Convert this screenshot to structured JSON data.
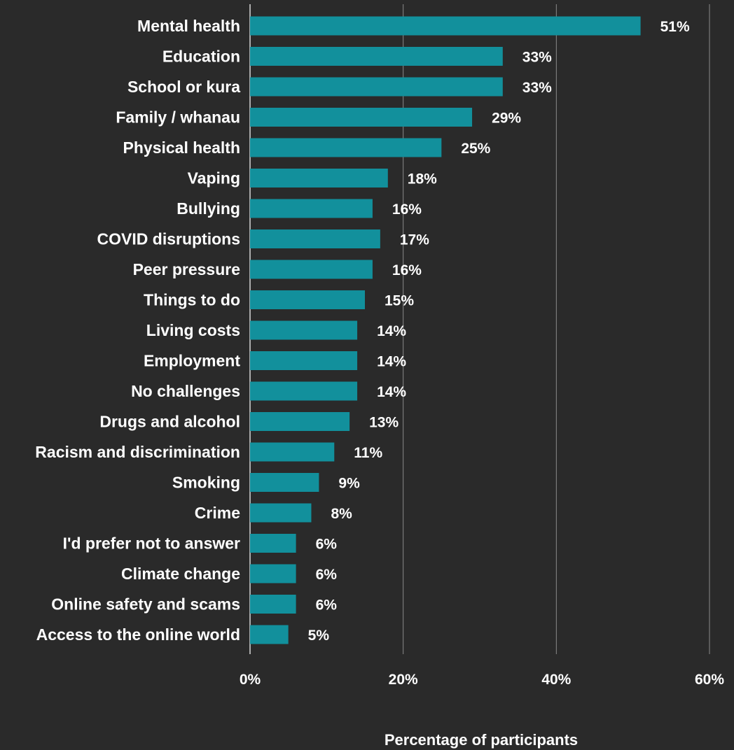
{
  "colors": {
    "background": "#2a2a2a",
    "bar": "#12909c",
    "grid": "#8a8a8a",
    "text": "#ffffff"
  },
  "chart_data": {
    "type": "bar",
    "orientation": "horizontal",
    "categories": [
      "Mental health",
      "Education",
      "School or kura",
      "Family / whanau",
      "Physical health",
      "Vaping",
      "Bullying",
      "COVID disruptions",
      "Peer pressure",
      "Things to do",
      "Living costs",
      "Employment",
      "No challenges",
      "Drugs and alcohol",
      "Racism and discrimination",
      "Smoking",
      "Crime",
      "I'd prefer not to answer",
      "Climate change",
      "Online safety and scams",
      "Access to the online world"
    ],
    "values": [
      51,
      33,
      33,
      29,
      25,
      18,
      16,
      17,
      16,
      15,
      14,
      14,
      14,
      13,
      11,
      9,
      8,
      6,
      6,
      6,
      5
    ],
    "value_labels": [
      "51%",
      "33%",
      "33%",
      "29%",
      "25%",
      "18%",
      "16%",
      "17%",
      "16%",
      "15%",
      "14%",
      "14%",
      "14%",
      "13%",
      "11%",
      "9%",
      "8%",
      "6%",
      "6%",
      "6%",
      "5%"
    ],
    "xlim": [
      0,
      60
    ],
    "xticks": [
      0,
      20,
      40,
      60
    ],
    "xtick_labels": [
      "0%",
      "20%",
      "40%",
      "60%"
    ],
    "xlabel": "Percentage of participants",
    "ylabel": "",
    "title": "",
    "grid": "vertical",
    "legend": "none"
  }
}
